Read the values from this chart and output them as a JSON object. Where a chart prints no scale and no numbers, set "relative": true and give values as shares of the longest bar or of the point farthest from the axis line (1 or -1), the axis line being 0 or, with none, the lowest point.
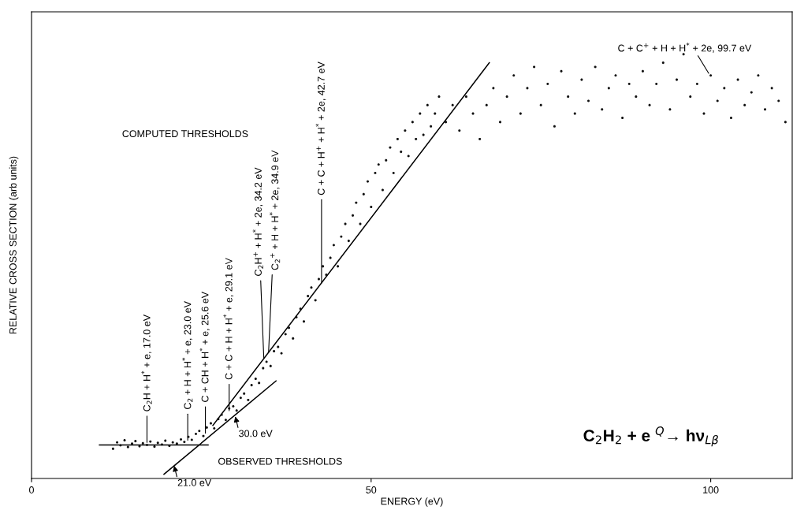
{
  "chart_data": {
    "type": "scatter",
    "relative": true,
    "xlabel": "ENERGY (eV)",
    "ylabel": "RELATIVE CROSS SECTION (arb units)",
    "xlim": [
      0,
      112
    ],
    "xticks": [
      0,
      50,
      100
    ],
    "grid": false,
    "series": [
      {
        "color": "#111111",
        "marker": "circle",
        "x": [
          12.0,
          12.6,
          13.1,
          13.7,
          14.2,
          14.8,
          15.3,
          15.9,
          16.4,
          17.0,
          17.5,
          18.1,
          18.6,
          19.2,
          19.7,
          20.3,
          20.8,
          21.4,
          22.0,
          22.5,
          23.1,
          23.6,
          24.2,
          24.7,
          25.3,
          25.8,
          26.4,
          26.9,
          27.5,
          28.0,
          28.6,
          29.1,
          29.7,
          30.2,
          30.8,
          31.3,
          31.9,
          32.4,
          33.0,
          33.5,
          34.1,
          34.6,
          35.2,
          35.7,
          36.3,
          36.8,
          37.4,
          37.9,
          38.5,
          39.0,
          39.6,
          40.1,
          40.7,
          41.2,
          41.8,
          42.3,
          42.9,
          43.4,
          44.0,
          44.5,
          45.1,
          45.6,
          46.2,
          46.7,
          47.3,
          47.8,
          48.4,
          48.9,
          49.5,
          50.0,
          50.6,
          51.1,
          51.7,
          52.2,
          52.8,
          53.3,
          53.9,
          54.4,
          55.0,
          55.5,
          56.1,
          56.6,
          57.2,
          57.7,
          58.3,
          58.8,
          59.4,
          60.0,
          61,
          62,
          63,
          64,
          65,
          66,
          67,
          68,
          69,
          70,
          71,
          72,
          73,
          74,
          75,
          76,
          77,
          78,
          79,
          80,
          81,
          82,
          83,
          84,
          85,
          86,
          87,
          88,
          89,
          90,
          91,
          92,
          93,
          94,
          95,
          96,
          97,
          98,
          99,
          100,
          101,
          102,
          103,
          104,
          105,
          106,
          107,
          108,
          109,
          110,
          111
        ],
        "values": [
          0.07,
          0.085,
          0.078,
          0.09,
          0.074,
          0.082,
          0.088,
          0.076,
          0.083,
          0.079,
          0.087,
          0.075,
          0.084,
          0.08,
          0.089,
          0.077,
          0.085,
          0.082,
          0.092,
          0.086,
          0.098,
          0.091,
          0.105,
          0.112,
          0.1,
          0.12,
          0.13,
          0.118,
          0.14,
          0.15,
          0.138,
          0.165,
          0.17,
          0.16,
          0.19,
          0.2,
          0.185,
          0.22,
          0.235,
          0.225,
          0.26,
          0.275,
          0.265,
          0.3,
          0.31,
          0.295,
          0.34,
          0.355,
          0.33,
          0.38,
          0.4,
          0.37,
          0.43,
          0.45,
          0.42,
          0.47,
          0.5,
          0.48,
          0.52,
          0.55,
          0.5,
          0.57,
          0.6,
          0.56,
          0.62,
          0.65,
          0.6,
          0.67,
          0.7,
          0.64,
          0.72,
          0.74,
          0.68,
          0.75,
          0.78,
          0.72,
          0.8,
          0.77,
          0.82,
          0.76,
          0.84,
          0.8,
          0.86,
          0.81,
          0.88,
          0.83,
          0.86,
          0.9,
          0.84,
          0.88,
          0.82,
          0.9,
          0.86,
          0.8,
          0.88,
          0.92,
          0.84,
          0.9,
          0.95,
          0.86,
          0.92,
          0.97,
          0.88,
          0.93,
          0.83,
          0.96,
          0.9,
          0.86,
          0.94,
          0.89,
          0.97,
          0.87,
          0.92,
          0.95,
          0.85,
          0.93,
          0.9,
          0.96,
          0.88,
          0.93,
          0.98,
          0.87,
          0.94,
          1.0,
          0.9,
          0.93,
          0.86,
          0.95,
          0.89,
          0.92,
          0.85,
          0.94,
          0.88,
          0.91,
          0.95,
          0.87,
          0.92,
          0.89,
          0.84
        ]
      },
      {
        "type": "line",
        "color": "#000000",
        "marker": "none",
        "x": [
          10,
          26
        ],
        "values": [
          0.079,
          0.079
        ]
      },
      {
        "type": "line",
        "color": "#000000",
        "marker": "none",
        "x": [
          19.5,
          36
        ],
        "values": [
          0.01,
          0.23
        ]
      },
      {
        "type": "line",
        "color": "#000000",
        "marker": "none",
        "x": [
          26.7,
          67.4
        ],
        "values": [
          0.125,
          0.98
        ]
      }
    ],
    "annotations": [
      {
        "text": "C$_{2}$H + H$^{*}$ + e, 17.0 eV",
        "x": 17.0,
        "y": 0.085
      },
      {
        "text": "C$_{2}$ + H + H$^{*}$ + e, 23.0 eV",
        "x": 23.0,
        "y": 0.09
      },
      {
        "text": "C + CH + H$^{*}$ + e, 25.6 eV",
        "x": 25.6,
        "y": 0.107
      },
      {
        "text": "C + C + H + H$^{*}$ + e, 29.1 eV",
        "x": 29.1,
        "y": 0.16
      },
      {
        "text": "C$_{2}$H$^{+}$ + H$^{*}$ + 2e, 34.2 eV",
        "x": 34.2,
        "y": 0.283
      },
      {
        "text": "C$_{2}$$^{+}$ + H + H$^{*}$ + 2e, 34.9 eV",
        "x": 34.9,
        "y": 0.297
      },
      {
        "text": "C + C + H$^{+}$ + H$^{*}$ + 2e, 42.7 eV",
        "x": 42.7,
        "y": 0.461
      },
      {
        "text": "C + C$^{+}$ + H + H$^{*}$ + 2e, 99.7 eV",
        "x": 99.7,
        "y": 0.955
      },
      {
        "text": "21.0 eV",
        "x": 21.0,
        "y": 0.03
      },
      {
        "text": "30.0 eV",
        "x": 30.0,
        "y": 0.146
      },
      "COMPUTED THRESHOLDS",
      "OBSERVED THRESHOLDS",
      "C$_{2}$H$_{2}$ + e $^{Q}$→ hν$_{Lβ}$"
    ]
  }
}
